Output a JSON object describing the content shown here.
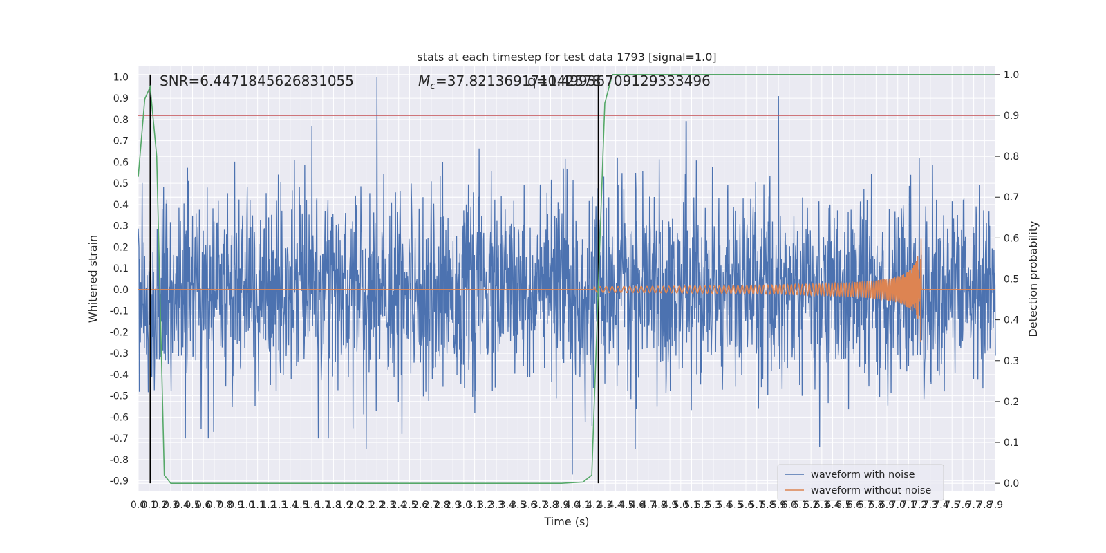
{
  "chart_data": {
    "type": "line",
    "title": "stats at each timestep for test data 1793 [signal=1.0]",
    "xlabel": "Time (s)",
    "ylabel": "Whitened strain",
    "y2label": "Detection probability",
    "xlim": [
      0.0,
      7.9
    ],
    "ylim": [
      -0.95,
      1.05
    ],
    "y2lim": [
      -0.02,
      1.02
    ],
    "x_ticks": [
      "0.0",
      "0.1",
      "0.2",
      "0.3",
      "0.4",
      "0.5",
      "0.6",
      "0.7",
      "0.8",
      "0.9",
      "1.0",
      "1.1",
      "1.2",
      "1.3",
      "1.4",
      "1.5",
      "1.6",
      "1.7",
      "1.8",
      "1.9",
      "2.0",
      "2.1",
      "2.2",
      "2.3",
      "2.4",
      "2.5",
      "2.6",
      "2.7",
      "2.8",
      "2.9",
      "3.0",
      "3.1",
      "3.2",
      "3.3",
      "3.4",
      "3.5",
      "3.6",
      "3.7",
      "3.8",
      "3.9",
      "4.0",
      "4.1",
      "4.2",
      "4.3",
      "4.4",
      "4.5",
      "4.6",
      "4.7",
      "4.8",
      "4.9",
      "5.0",
      "5.1",
      "5.2",
      "5.3",
      "5.4",
      "5.5",
      "5.6",
      "5.7",
      "5.8",
      "5.9",
      "6.0",
      "6.1",
      "6.2",
      "6.3",
      "6.4",
      "6.5",
      "6.6",
      "6.7",
      "6.8",
      "6.9",
      "7.0",
      "7.1",
      "7.2",
      "7.3",
      "7.4",
      "7.5",
      "7.6",
      "7.7",
      "7.8",
      "7.9"
    ],
    "y_ticks": [
      "1.0",
      "0.9",
      "0.8",
      "0.7",
      "0.6",
      "0.5",
      "0.4",
      "0.3",
      "0.2",
      "0.1",
      "0.0",
      "-0.1",
      "-0.2",
      "-0.3",
      "-0.4",
      "-0.5",
      "-0.6",
      "-0.7",
      "-0.8",
      "-0.9"
    ],
    "y2_ticks": [
      "1.0",
      "0.9",
      "0.8",
      "0.7",
      "0.6",
      "0.5",
      "0.4",
      "0.3",
      "0.2",
      "0.1",
      "0.0"
    ],
    "grid": true,
    "legend_position": "lower-right",
    "annotations": {
      "snr": "SNR=6.4471845626831055",
      "mc_symbol": "M",
      "mc_subscript": "c",
      "mc_value": "=37.821369171142578",
      "q": "q=0.49936709129333496"
    },
    "vertical_markers": [
      0.11,
      4.24
    ],
    "threshold": 0.9,
    "series": [
      {
        "name": "waveform with noise",
        "color": "#4c72b0",
        "noise_amplitude": 0.22,
        "peaks": [
          [
            2.2,
            1.0
          ],
          [
            5.9,
            0.91
          ],
          [
            1.6,
            0.77
          ],
          [
            5.05,
            0.79
          ],
          [
            4.0,
            -0.87
          ],
          [
            2.1,
            -0.75
          ],
          [
            4.58,
            -0.75
          ],
          [
            6.28,
            -0.74
          ]
        ]
      },
      {
        "name": "waveform without noise",
        "color": "#dd8452",
        "chirp_start": 4.2,
        "chirp_end": 7.22,
        "peak_amplitude": 0.33
      },
      {
        "color": "#55a868",
        "x": [
          0.0,
          0.06,
          0.11,
          0.17,
          0.24,
          0.3,
          0.6,
          1.0,
          2.0,
          3.0,
          3.9,
          4.1,
          4.18,
          4.24,
          4.3,
          4.37,
          5.0,
          6.0,
          7.9
        ],
        "y": [
          0.75,
          0.94,
          0.97,
          0.8,
          0.02,
          0.0,
          0.0,
          0.0,
          0.0,
          0.0,
          0.0,
          0.003,
          0.02,
          0.48,
          0.93,
          1.0,
          1.0,
          1.0,
          1.0
        ]
      },
      {
        "color": "#c44e52",
        "y": [
          0.9,
          0.9
        ]
      }
    ],
    "colors": {
      "background": "#eaeaf2",
      "grid": "#ffffff",
      "marker": "#000000"
    }
  }
}
